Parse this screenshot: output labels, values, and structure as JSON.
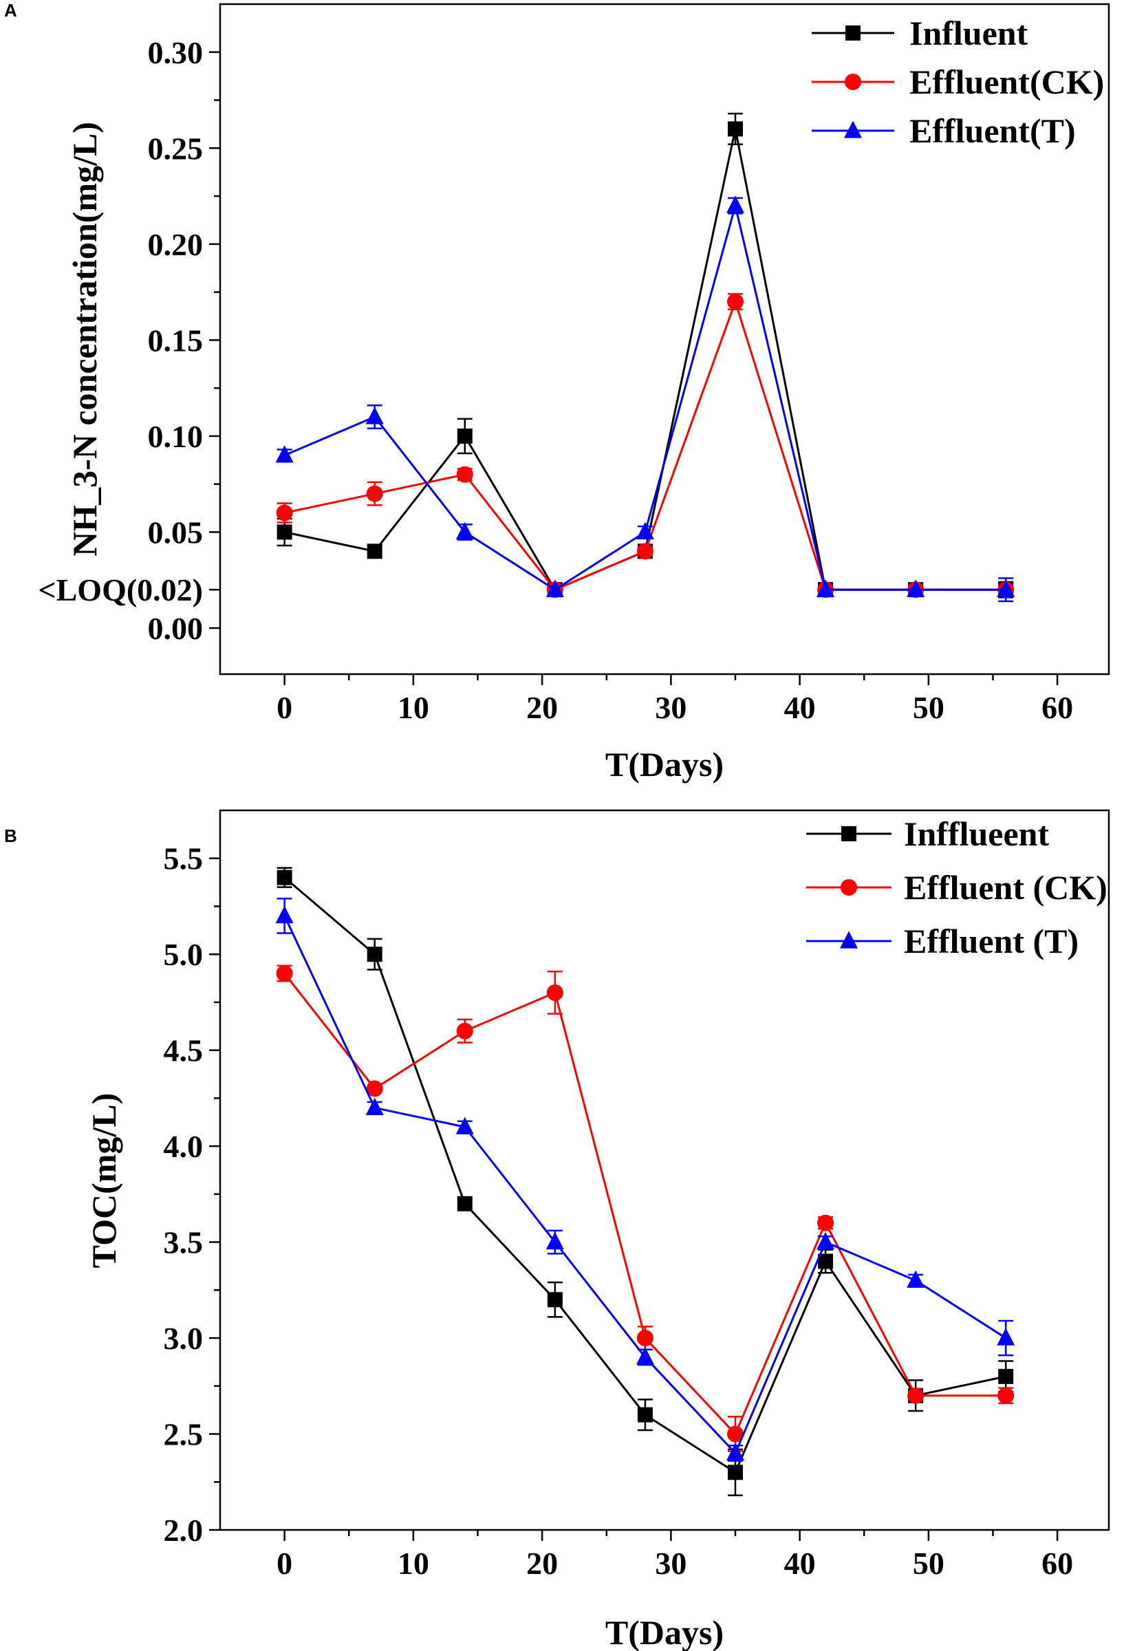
{
  "chart_data": [
    {
      "panel": "A",
      "type": "line",
      "title": "",
      "xlabel": "T(Days)",
      "ylabel": "NH_3-N concentration(mg/L)",
      "xlim": [
        -5,
        64
      ],
      "ylim": [
        -0.024,
        0.325
      ],
      "xticks": [
        0,
        10,
        20,
        30,
        40,
        50,
        60
      ],
      "xtick_labels": [
        "0",
        "10",
        "20",
        "30",
        "40",
        "50",
        "60"
      ],
      "yticks": [
        0.0,
        0.02,
        0.05,
        0.1,
        0.15,
        0.2,
        0.25,
        0.3
      ],
      "ytick_labels": [
        "0.00",
        "<LOQ(0.02)",
        "0.05",
        "0.10",
        "0.15",
        "0.20",
        "0.25",
        "0.30"
      ],
      "x": [
        0,
        7,
        14,
        21,
        28,
        35,
        42,
        49,
        56
      ],
      "legend_position": "top-right",
      "series": [
        {
          "name": "Influent",
          "color": "#000000",
          "marker": "square",
          "values": [
            0.05,
            0.04,
            0.1,
            0.02,
            0.04,
            0.26,
            0.02,
            0.02,
            0.02
          ],
          "errors": [
            0.007,
            0.0,
            0.009,
            0.0,
            0.0,
            0.008,
            0.0,
            0.0,
            0.004
          ]
        },
        {
          "name": "Effluent(CK)",
          "color": "#ff0000",
          "marker": "circle",
          "values": [
            0.06,
            0.07,
            0.08,
            0.02,
            0.04,
            0.17,
            0.02,
            0.02,
            0.02
          ],
          "errors": [
            0.005,
            0.006,
            0.003,
            0.0,
            0.002,
            0.004,
            0.0,
            0.0,
            0.002
          ]
        },
        {
          "name": "Effluent(T)",
          "color": "#0000ff",
          "marker": "triangle",
          "values": [
            0.09,
            0.11,
            0.05,
            0.02,
            0.05,
            0.22,
            0.02,
            0.02,
            0.02
          ],
          "errors": [
            0.003,
            0.006,
            0.004,
            0.0,
            0.003,
            0.004,
            0.0,
            0.0,
            0.006
          ]
        }
      ]
    },
    {
      "panel": "B",
      "type": "line",
      "title": "",
      "xlabel": "T(Days)",
      "ylabel": "TOC(mg/L)",
      "xlim": [
        -5,
        64
      ],
      "ylim": [
        2.0,
        5.75
      ],
      "xticks": [
        0,
        10,
        20,
        30,
        40,
        50,
        60
      ],
      "xtick_labels": [
        "0",
        "10",
        "20",
        "30",
        "40",
        "50",
        "60"
      ],
      "yticks": [
        2.0,
        2.5,
        3.0,
        3.5,
        4.0,
        4.5,
        5.0,
        5.5
      ],
      "ytick_labels": [
        "2.0",
        "2.5",
        "3.0",
        "3.5",
        "4.0",
        "4.5",
        "5.0",
        "5.5"
      ],
      "x": [
        0,
        7,
        14,
        21,
        28,
        35,
        42,
        49,
        56
      ],
      "legend_position": "top-right",
      "series": [
        {
          "name": "Infflueent",
          "color": "#000000",
          "marker": "square",
          "values": [
            5.4,
            5.0,
            3.7,
            3.2,
            2.6,
            2.3,
            3.4,
            2.7,
            2.8
          ],
          "errors": [
            0.05,
            0.08,
            0.0,
            0.09,
            0.08,
            0.12,
            0.06,
            0.08,
            0.08
          ]
        },
        {
          "name": "Effluent (CK)",
          "color": "#ff0000",
          "marker": "circle",
          "values": [
            4.9,
            4.3,
            4.6,
            4.8,
            3.0,
            2.5,
            3.6,
            2.7,
            2.7
          ],
          "errors": [
            0.04,
            0.0,
            0.06,
            0.11,
            0.06,
            0.09,
            0.03,
            0.0,
            0.04
          ]
        },
        {
          "name": "Effluent (T)",
          "color": "#0000ff",
          "marker": "triangle",
          "values": [
            5.2,
            4.2,
            4.1,
            3.5,
            2.9,
            2.4,
            3.5,
            3.3,
            3.0
          ],
          "errors": [
            0.09,
            0.03,
            0.03,
            0.06,
            0.04,
            0.04,
            0.03,
            0.03,
            0.09
          ]
        }
      ]
    }
  ]
}
